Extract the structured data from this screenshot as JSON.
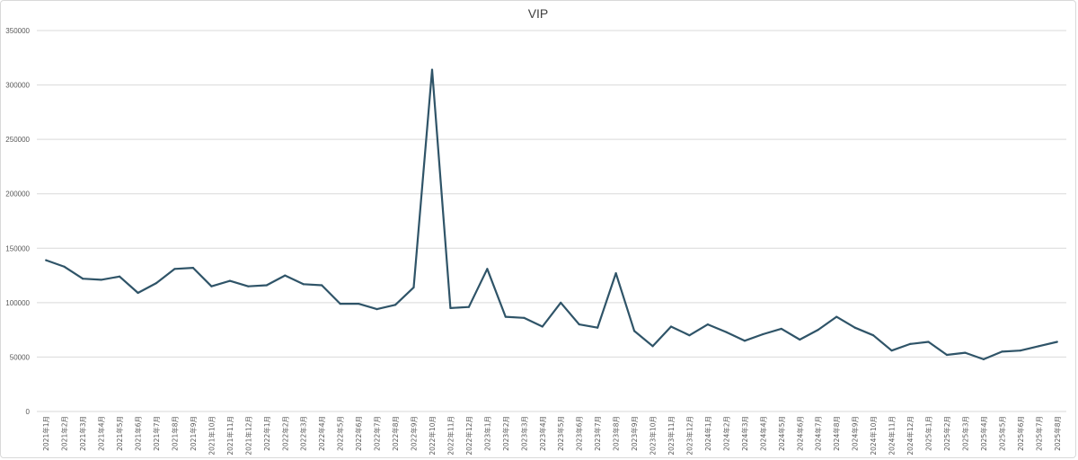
{
  "chart_data": {
    "type": "line",
    "title": "VIP",
    "ylim": [
      0,
      350000
    ],
    "yticks": [
      0,
      50000,
      100000,
      150000,
      200000,
      250000,
      300000,
      350000
    ],
    "grid": "horizontal",
    "legend": "none",
    "line_color": "#2f5468",
    "gridline_color": "#d9d9d9",
    "categories": [
      "2021年1月",
      "2021年2月",
      "2021年3月",
      "2021年4月",
      "2021年5月",
      "2021年6月",
      "2021年7月",
      "2021年8月",
      "2021年9月",
      "2021年10月",
      "2021年11月",
      "2021年12月",
      "2022年1月",
      "2022年2月",
      "2022年3月",
      "2022年4月",
      "2022年5月",
      "2022年6月",
      "2022年7月",
      "2022年8月",
      "2022年9月",
      "2022年10月",
      "2022年11月",
      "2022年12月",
      "2023年1月",
      "2023年2月",
      "2023年3月",
      "2023年4月",
      "2023年5月",
      "2023年6月",
      "2023年7月",
      "2023年8月",
      "2023年9月",
      "2023年10月",
      "2023年11月",
      "2023年12月",
      "2024年1月",
      "2024年2月",
      "2024年3月",
      "2024年4月",
      "2024年5月",
      "2024年6月",
      "2024年7月",
      "2024年8月",
      "2024年9月",
      "2024年10月",
      "2024年11月",
      "2024年12月",
      "2025年1月",
      "2025年2月",
      "2025年3月",
      "2025年4月",
      "2025年5月",
      "2025年6月",
      "2025年7月",
      "2025年8月"
    ],
    "values": [
      139000,
      133000,
      122000,
      121000,
      124000,
      109000,
      118000,
      131000,
      132000,
      115000,
      120000,
      115000,
      116000,
      125000,
      117000,
      116000,
      99000,
      99000,
      94000,
      98000,
      114000,
      314000,
      95000,
      96000,
      131000,
      87000,
      86000,
      78000,
      100000,
      80000,
      77000,
      127000,
      74000,
      60000,
      78000,
      70000,
      80000,
      73000,
      65000,
      71000,
      76000,
      66000,
      75000,
      87000,
      77000,
      70000,
      56000,
      62000,
      64000,
      52000,
      54000,
      48000,
      55000,
      56000,
      60000,
      64000
    ]
  }
}
